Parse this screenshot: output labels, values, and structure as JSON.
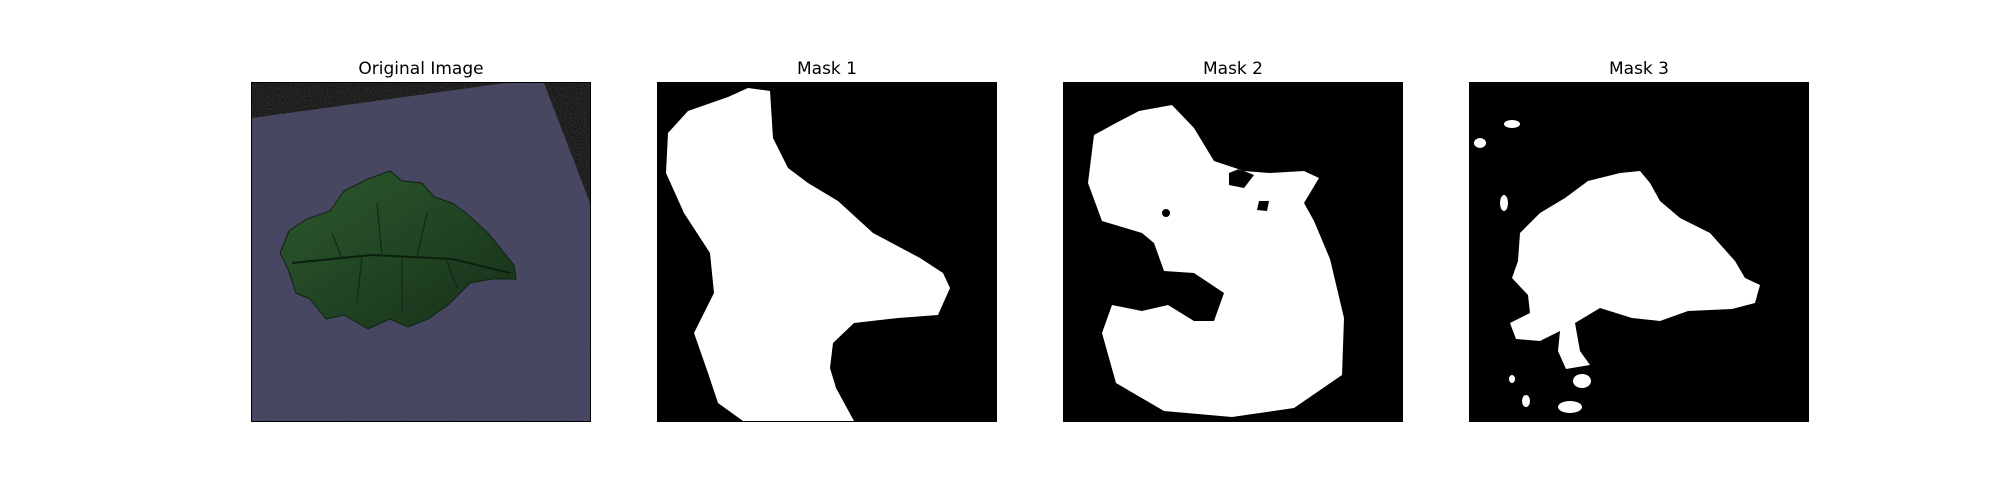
{
  "figure": {
    "panels": [
      {
        "title": "Original Image",
        "content": "tomato leaf on fabric"
      },
      {
        "title": "Mask 1",
        "content": "binary mask"
      },
      {
        "title": "Mask 2",
        "content": "binary mask"
      },
      {
        "title": "Mask 3",
        "content": "binary mask"
      }
    ]
  },
  "colors": {
    "background": "#000000",
    "mask": "#ffffff",
    "fabric": "#4a4a66",
    "leaf": "#1f3d22"
  }
}
